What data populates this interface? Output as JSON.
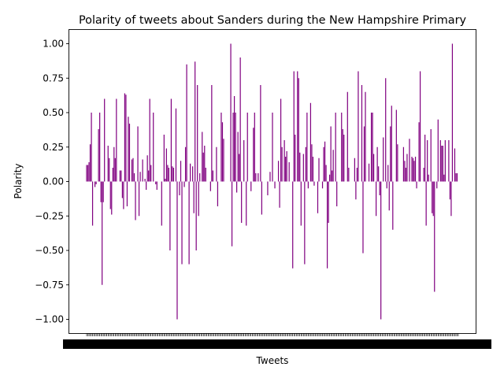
{
  "chart_data": {
    "type": "bar",
    "title": "Polarity of tweets about Sanders during the New Hampshire Primary",
    "xlabel": "Tweets",
    "ylabel": "Polarity",
    "ylim": [
      -1.1,
      1.1
    ],
    "yticks": [
      1.0,
      0.75,
      0.5,
      0.25,
      0.0,
      -0.25,
      -0.5,
      -0.75,
      -1.0
    ],
    "ytick_labels": [
      "1.00",
      "0.75",
      "0.50",
      "0.25",
      "0.00",
      "−0.25",
      "−0.50",
      "−0.75",
      "−1.00"
    ],
    "bar_color": "#800080",
    "grid": false,
    "xtick_labels_legible": false,
    "values": [
      0.12,
      0.12,
      0.14,
      0.27,
      0.5,
      -0.32,
      0.0,
      -0.04,
      -0.02,
      0.0,
      0.38,
      0.5,
      -0.15,
      -0.75,
      -0.15,
      0.6,
      0.0,
      0.0,
      0.26,
      0.17,
      -0.2,
      -0.24,
      0.1,
      0.25,
      0.17,
      0.6,
      0.0,
      0.0,
      0.08,
      0.08,
      -0.12,
      -0.2,
      0.64,
      0.63,
      -0.18,
      0.47,
      0.42,
      0.0,
      0.16,
      0.17,
      0.06,
      -0.28,
      0.0,
      0.4,
      -0.25,
      0.07,
      0.0,
      0.16,
      0.0,
      0.02,
      -0.06,
      0.19,
      0.08,
      0.6,
      0.12,
      0.0,
      0.5,
      0.0,
      -0.02,
      -0.06,
      0.0,
      0.0,
      0.0,
      -0.32,
      0.0,
      0.34,
      0.02,
      0.24,
      0.12,
      0.1,
      -0.5,
      0.6,
      0.11,
      0.1,
      0.0,
      0.53,
      -1.0,
      0.0,
      -0.1,
      0.15,
      -0.6,
      0.0,
      -0.04,
      0.25,
      0.85,
      0.0,
      -0.6,
      0.13,
      0.0,
      0.11,
      -0.23,
      0.87,
      -0.5,
      0.7,
      -0.25,
      0.06,
      0.0,
      0.36,
      0.21,
      0.26,
      0.1,
      0.0,
      0.0,
      0.0,
      -0.07,
      0.7,
      0.08,
      0.0,
      0.0,
      0.25,
      -0.18,
      0.0,
      0.0,
      0.5,
      0.43,
      0.31,
      0.0,
      0.0,
      0.0,
      0.0,
      0.0,
      1.0,
      -0.47,
      0.5,
      0.62,
      0.5,
      -0.08,
      0.36,
      0.2,
      0.9,
      -0.3,
      0.0,
      0.3,
      0.0,
      -0.32,
      0.5,
      0.0,
      0.0,
      -0.07,
      0.0,
      0.39,
      0.5,
      0.06,
      0.0,
      0.06,
      0.0,
      0.7,
      -0.24,
      0.0,
      0.0,
      0.0,
      0.0,
      -0.1,
      0.0,
      0.07,
      0.0,
      0.5,
      0.0,
      -0.05,
      0.0,
      0.0,
      0.15,
      -0.19,
      0.6,
      0.25,
      0.0,
      0.3,
      0.18,
      0.22,
      0.0,
      0.14,
      0.0,
      0.0,
      -0.63,
      0.8,
      0.34,
      0.0,
      0.8,
      0.75,
      0.21,
      -0.32,
      0.0,
      0.2,
      -0.6,
      0.25,
      0.5,
      -0.05,
      0.0,
      0.57,
      0.27,
      0.18,
      -0.03,
      0.0,
      0.0,
      -0.23,
      0.17,
      0.0,
      0.0,
      -0.05,
      0.25,
      0.29,
      0.12,
      -0.63,
      -0.3,
      0.05,
      0.4,
      0.08,
      0.23,
      0.0,
      0.5,
      -0.18,
      0.0,
      0.0,
      0.0,
      0.5,
      0.38,
      0.34,
      0.0,
      0.0,
      0.65,
      0.1,
      0.0,
      0.0,
      0.0,
      0.0,
      0.17,
      -0.13,
      0.1,
      0.8,
      0.0,
      0.0,
      0.7,
      -0.52,
      0.4,
      0.65,
      0.0,
      0.0,
      0.13,
      0.0,
      0.5,
      0.5,
      0.2,
      0.0,
      -0.25,
      0.25,
      0.11,
      -0.1,
      -1.0,
      0.0,
      0.32,
      0.0,
      0.75,
      -0.05,
      0.12,
      -0.21,
      0.4,
      0.55,
      -0.35,
      0.0,
      0.0,
      0.52,
      0.27,
      0.0,
      0.0,
      0.0,
      0.0,
      0.25,
      0.15,
      0.1,
      0.2,
      0.0,
      0.31,
      0.0,
      0.18,
      0.17,
      0.15,
      0.18,
      -0.05,
      0.0,
      0.43,
      0.8,
      0.0,
      0.0,
      0.1,
      0.34,
      -0.32,
      0.3,
      0.05,
      0.0,
      0.38,
      -0.23,
      -0.25,
      -0.8,
      0.0,
      -0.05,
      0.45,
      0.0,
      0.3,
      0.26,
      0.26,
      0.05,
      0.3,
      0.0,
      0.0,
      0.3,
      -0.13,
      -0.25,
      1.0,
      0.0,
      0.24,
      0.06,
      0.06,
      0.0
    ]
  }
}
